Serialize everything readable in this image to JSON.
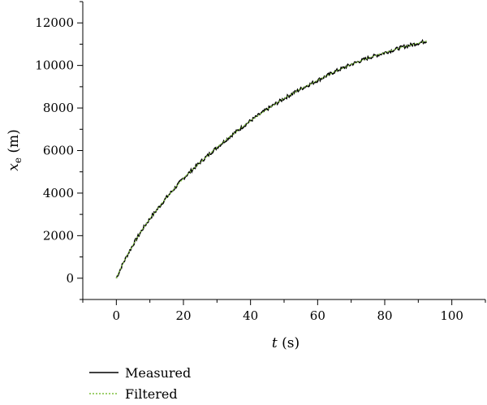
{
  "chart_data": {
    "type": "line",
    "xlabel": {
      "var": "t",
      "unit": " (s)"
    },
    "ylabel": {
      "var": "x",
      "sub": "e",
      "unit": " (m)"
    },
    "xlim": [
      -10,
      110
    ],
    "ylim": [
      -1000,
      13000
    ],
    "x_ticks": [
      0,
      20,
      40,
      60,
      80,
      100
    ],
    "y_ticks": [
      0,
      2000,
      4000,
      6000,
      8000,
      10000,
      12000
    ],
    "grid": false,
    "legend_position": "below-left",
    "series": [
      {
        "name": "Measured",
        "color": "#000000",
        "style": "solid",
        "x": [
          0,
          2,
          4,
          6,
          8,
          10,
          15,
          20,
          25,
          30,
          35,
          40,
          45,
          50,
          55,
          60,
          65,
          70,
          75,
          80,
          85,
          90,
          92.5
        ],
        "y": [
          0,
          700,
          1300,
          1850,
          2350,
          2800,
          3800,
          4700,
          5450,
          6150,
          6800,
          7400,
          7950,
          8450,
          8900,
          9300,
          9700,
          10050,
          10350,
          10600,
          10850,
          11050,
          11150
        ]
      },
      {
        "name": "Filtered",
        "color": "#7dbf3c",
        "style": "dotted",
        "x": [
          0,
          2,
          4,
          6,
          8,
          10,
          15,
          20,
          25,
          30,
          35,
          40,
          45,
          50,
          55,
          60,
          65,
          70,
          75,
          80,
          85,
          90,
          92.5
        ],
        "y": [
          0,
          700,
          1300,
          1850,
          2350,
          2800,
          3800,
          4700,
          5450,
          6150,
          6800,
          7400,
          7950,
          8450,
          8900,
          9300,
          9700,
          10050,
          10350,
          10600,
          10850,
          11050,
          11150
        ]
      }
    ]
  }
}
